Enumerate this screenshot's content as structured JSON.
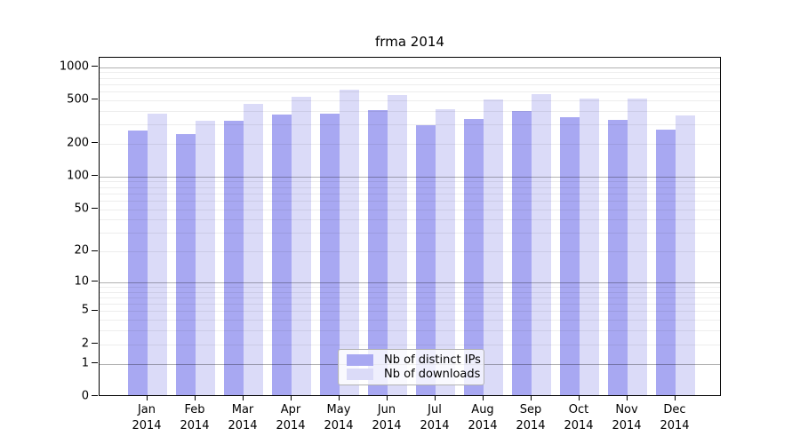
{
  "chart_data": {
    "type": "bar",
    "title": "frma 2014",
    "categories": [
      "Jan",
      "Feb",
      "Mar",
      "Apr",
      "May",
      "Jun",
      "Jul",
      "Aug",
      "Sep",
      "Oct",
      "Nov",
      "Dec"
    ],
    "category_year": "2014",
    "series": [
      {
        "name": "Nb of distinct IPs",
        "color": "#a8a8f2",
        "values": [
          252,
          238,
          310,
          357,
          362,
          390,
          286,
          324,
          380,
          338,
          316,
          260
        ]
      },
      {
        "name": "Nb of downloads",
        "color": "#dbdbf8",
        "values": [
          366,
          310,
          447,
          515,
          605,
          540,
          398,
          485,
          545,
          494,
          494,
          349
        ]
      }
    ],
    "y_axis": {
      "scale": "log1p",
      "tick_values": [
        0,
        1,
        2,
        5,
        10,
        20,
        50,
        100,
        200,
        500,
        1000
      ],
      "major_gridlines": [
        1,
        10,
        100,
        1000
      ],
      "ylim": [
        0,
        1212
      ]
    },
    "x_axis": {
      "label_format": "month over year"
    },
    "legend": {
      "position": "lower center",
      "entries": [
        "Nb of distinct IPs",
        "Nb of downloads"
      ]
    },
    "grid": true
  }
}
